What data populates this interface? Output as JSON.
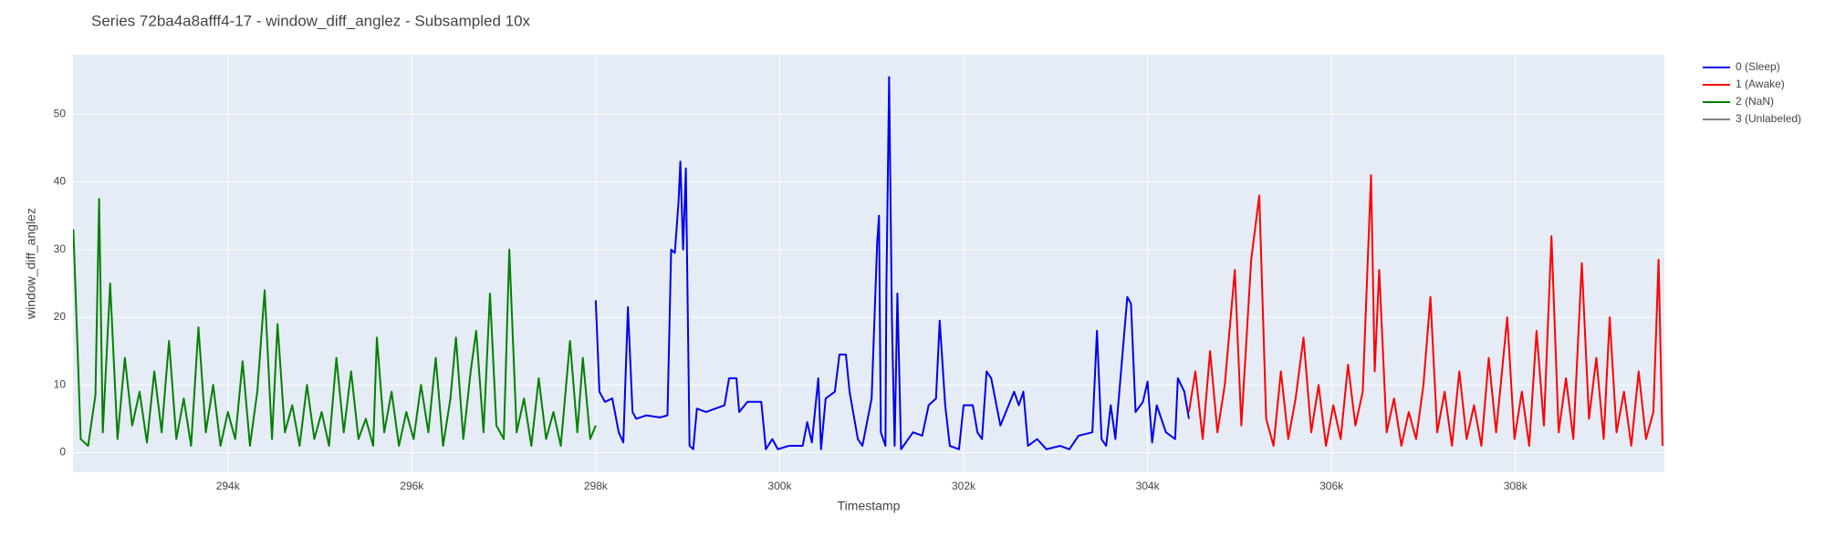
{
  "chart_data": {
    "type": "line",
    "title": "Series 72ba4a8afff4-17 - window_diff_anglez - Subsampled 10x",
    "x_label": "Timestamp",
    "y_label": "window_diff_anglez",
    "xlim": [
      292316,
      309620
    ],
    "ylim": [
      -2.9,
      58.8
    ],
    "xticks": [
      {
        "value": 294000,
        "label": "294k"
      },
      {
        "value": 296000,
        "label": "296k"
      },
      {
        "value": 298000,
        "label": "298k"
      },
      {
        "value": 300000,
        "label": "300k"
      },
      {
        "value": 302000,
        "label": "302k"
      },
      {
        "value": 304000,
        "label": "304k"
      },
      {
        "value": 306000,
        "label": "306k"
      },
      {
        "value": 308000,
        "label": "308k"
      }
    ],
    "yticks": [
      0,
      10,
      20,
      30,
      40,
      50
    ],
    "grid": true,
    "legend": "right",
    "series": [
      {
        "name": "0 (Sleep)",
        "color": "#0000ee",
        "x": [
          298000,
          298040,
          298100,
          298180,
          298250,
          298300,
          298350,
          298400,
          298440,
          298550,
          298700,
          298780,
          298820,
          298860,
          298900,
          298920,
          298950,
          298980,
          299020,
          299060,
          299100,
          299200,
          299300,
          299400,
          299450,
          299530,
          299560,
          299650,
          299800,
          299850,
          299920,
          299980,
          300100,
          300250,
          300300,
          300350,
          300420,
          300450,
          300500,
          300600,
          300650,
          300720,
          300760,
          300850,
          300900,
          301000,
          301060,
          301080,
          301100,
          301150,
          301160,
          301190,
          301220,
          301250,
          301280,
          301320,
          301450,
          301550,
          301620,
          301700,
          301740,
          301800,
          301850,
          301950,
          302000,
          302100,
          302150,
          302200,
          302250,
          302300,
          302400,
          302550,
          302600,
          302650,
          302700,
          302800,
          302900,
          303050,
          303150,
          303250,
          303400,
          303450,
          303500,
          303550,
          303600,
          303650,
          303780,
          303820,
          303870,
          303950,
          304000,
          304050,
          304100,
          304200,
          304300,
          304330,
          304400,
          304450
        ],
        "values": [
          22.5,
          9,
          7.5,
          8,
          3,
          1.5,
          21.5,
          6,
          5,
          5.5,
          5.2,
          5.5,
          30,
          29.5,
          37,
          43,
          30,
          42,
          1,
          0.5,
          6.5,
          6,
          6.5,
          7,
          11,
          11,
          6,
          7.5,
          7.5,
          0.5,
          2,
          0.5,
          1,
          1,
          4.5,
          1.5,
          11,
          0.5,
          8,
          9,
          14.5,
          14.5,
          9,
          2,
          1,
          8,
          31,
          35,
          3,
          1,
          24,
          55.5,
          20,
          1,
          23.5,
          0.5,
          3,
          2.5,
          7,
          8,
          19.5,
          7,
          1,
          0.5,
          7,
          7,
          3,
          2,
          12,
          11,
          4,
          9,
          7,
          9,
          1,
          2,
          0.5,
          1,
          0.5,
          2.5,
          3,
          18,
          2,
          1,
          7,
          2,
          23,
          22,
          6,
          7.5,
          10.5,
          1.5,
          7,
          3,
          2,
          11,
          9,
          5
        ]
      },
      {
        "name": "1 (Awake)",
        "color": "#ff0000",
        "x": [
          304450,
          304520,
          304600,
          304680,
          304760,
          304840,
          304949,
          305020,
          305127,
          305215,
          305290,
          305370,
          305450,
          305530,
          305610,
          305696,
          305780,
          305860,
          305940,
          306020,
          306100,
          306180,
          306260,
          306340,
          306430,
          306470,
          306519,
          306600,
          306680,
          306760,
          306840,
          306920,
          307000,
          307076,
          307150,
          307230,
          307310,
          307390,
          307470,
          307550,
          307630,
          307710,
          307790,
          307911,
          307990,
          308070,
          308150,
          308230,
          308310,
          308392,
          308470,
          308550,
          308630,
          308722,
          308800,
          308880,
          308960,
          309025,
          309100,
          309180,
          309260,
          309340,
          309420,
          309500,
          309557,
          309600
        ],
        "values": [
          6,
          12,
          2,
          15,
          3,
          10,
          27,
          4,
          28.5,
          38,
          5,
          1,
          12,
          2,
          8,
          17,
          3,
          10,
          1,
          7,
          2,
          13,
          4,
          9,
          41,
          12,
          27,
          3,
          8,
          1,
          6,
          2,
          10,
          23,
          3,
          9,
          1,
          12,
          2,
          7,
          1,
          14,
          3,
          20,
          2,
          9,
          1,
          18,
          4,
          32,
          3,
          11,
          2,
          28,
          5,
          14,
          2,
          20,
          3,
          9,
          1,
          12,
          2,
          6,
          28.5,
          1
        ]
      },
      {
        "name": "2 (NaN)",
        "color": "#008000",
        "x": [
          292320,
          292400,
          292480,
          292560,
          292600,
          292640,
          292720,
          292800,
          292880,
          292960,
          293040,
          293120,
          293200,
          293280,
          293360,
          293440,
          293520,
          293600,
          293680,
          293760,
          293840,
          293920,
          294000,
          294080,
          294160,
          294240,
          294320,
          294400,
          294480,
          294540,
          294620,
          294700,
          294780,
          294860,
          294940,
          295020,
          295100,
          295180,
          295260,
          295340,
          295420,
          295500,
          295580,
          295620,
          295700,
          295780,
          295860,
          295940,
          296020,
          296100,
          296180,
          296260,
          296340,
          296420,
          296480,
          296560,
          296640,
          296700,
          296780,
          296850,
          296920,
          297000,
          297060,
          297140,
          297220,
          297300,
          297380,
          297460,
          297540,
          297620,
          297720,
          297800,
          297860,
          297940,
          298000
        ],
        "values": [
          33,
          2,
          1,
          8.5,
          37.5,
          3,
          25,
          2,
          14,
          4,
          9,
          1.5,
          12,
          3,
          16.5,
          2,
          8,
          1,
          18.5,
          3,
          10,
          1,
          6,
          2,
          13.5,
          1,
          9,
          24,
          2,
          19,
          3,
          7,
          1,
          10,
          2,
          6,
          1,
          14,
          3,
          12,
          2,
          5,
          1,
          17,
          3,
          9,
          1,
          6,
          2,
          10,
          3,
          14,
          1,
          8,
          17,
          2,
          12,
          18,
          3,
          23.5,
          4,
          2,
          30,
          3,
          8,
          1,
          11,
          2,
          6,
          1,
          16.5,
          3,
          14,
          2,
          4
        ]
      },
      {
        "name": "3 (Unlabeled)",
        "color": "#808080",
        "x": [],
        "values": []
      }
    ]
  }
}
